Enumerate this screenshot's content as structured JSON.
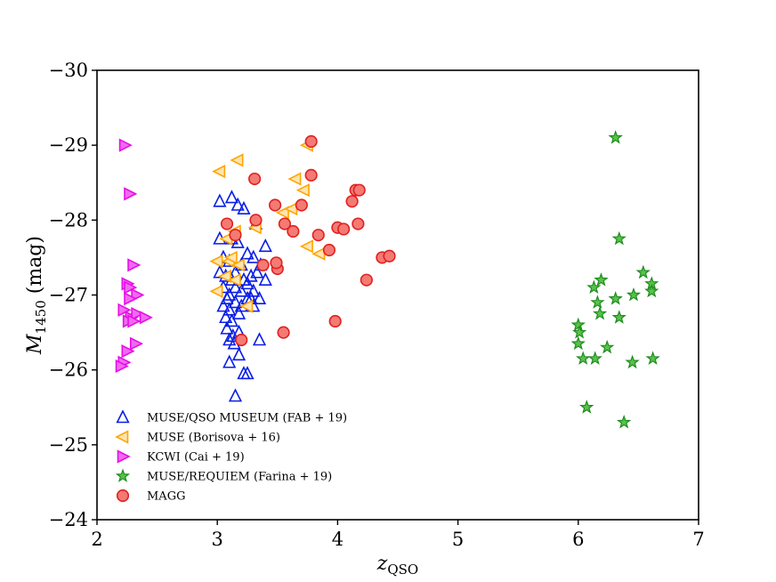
{
  "chart_data": {
    "type": "scatter",
    "title": "",
    "xlabel": "z_QSO",
    "ylabel": "M_1450 (mag)",
    "xlim": [
      2,
      7
    ],
    "ylim": [
      -24,
      -30
    ],
    "grid": false,
    "legend_position": "lower-left",
    "x_ticks": [
      2,
      3,
      4,
      5,
      6,
      7
    ],
    "x_tick_labels": [
      "2",
      "3",
      "4",
      "5",
      "6",
      "7"
    ],
    "y_ticks": [
      -30,
      -29,
      -28,
      -27,
      -26,
      -25,
      -24
    ],
    "y_tick_labels": [
      "−30",
      "−29",
      "−28",
      "−27",
      "−26",
      "−25",
      "−24"
    ],
    "series": [
      {
        "name": "MUSE/QSO MUSEUM (FAB + 19)",
        "marker": "triangle-up",
        "edge": "#0a1ee6",
        "face": "none",
        "points": [
          [
            3.02,
            -27.75
          ],
          [
            3.12,
            -27.75
          ],
          [
            3.17,
            -27.7
          ],
          [
            3.22,
            -28.15
          ],
          [
            3.32,
            -27.95
          ],
          [
            3.4,
            -27.65
          ],
          [
            3.05,
            -27.5
          ],
          [
            3.1,
            -27.45
          ],
          [
            3.2,
            -27.4
          ],
          [
            3.25,
            -27.55
          ],
          [
            3.3,
            -27.5
          ],
          [
            3.36,
            -27.4
          ],
          [
            3.02,
            -27.3
          ],
          [
            3.07,
            -27.25
          ],
          [
            3.12,
            -27.2
          ],
          [
            3.15,
            -27.3
          ],
          [
            3.22,
            -27.2
          ],
          [
            3.28,
            -27.25
          ],
          [
            3.33,
            -27.3
          ],
          [
            3.4,
            -27.2
          ],
          [
            3.05,
            -27.1
          ],
          [
            3.1,
            -27.0
          ],
          [
            3.15,
            -27.1
          ],
          [
            3.2,
            -27.05
          ],
          [
            3.25,
            -27.15
          ],
          [
            3.3,
            -27.05
          ],
          [
            3.35,
            -26.95
          ],
          [
            3.05,
            -26.85
          ],
          [
            3.1,
            -26.8
          ],
          [
            3.15,
            -26.9
          ],
          [
            3.2,
            -26.85
          ],
          [
            3.25,
            -26.95
          ],
          [
            3.3,
            -26.85
          ],
          [
            3.07,
            -26.7
          ],
          [
            3.12,
            -26.65
          ],
          [
            3.18,
            -26.75
          ],
          [
            3.08,
            -26.55
          ],
          [
            3.13,
            -26.45
          ],
          [
            3.18,
            -26.5
          ],
          [
            3.1,
            -26.4
          ],
          [
            3.14,
            -26.35
          ],
          [
            3.18,
            -26.2
          ],
          [
            3.35,
            -26.4
          ],
          [
            3.1,
            -26.1
          ],
          [
            3.22,
            -25.95
          ],
          [
            3.25,
            -25.95
          ],
          [
            3.15,
            -25.65
          ],
          [
            3.02,
            -28.25
          ],
          [
            3.12,
            -28.3
          ],
          [
            3.17,
            -28.2
          ],
          [
            3.08,
            -26.95
          ],
          [
            3.28,
            -26.95
          ]
        ]
      },
      {
        "name": "MUSE (Borisova + 16)",
        "marker": "triangle-left",
        "edge": "#ffa500",
        "face": "#ffe4b0",
        "points": [
          [
            3.02,
            -28.65
          ],
          [
            3.17,
            -28.8
          ],
          [
            3.75,
            -29.0
          ],
          [
            3.65,
            -28.55
          ],
          [
            3.72,
            -28.4
          ],
          [
            3.55,
            -28.1
          ],
          [
            3.62,
            -28.15
          ],
          [
            3.15,
            -27.85
          ],
          [
            3.32,
            -27.9
          ],
          [
            3.08,
            -27.75
          ],
          [
            3.75,
            -27.65
          ],
          [
            3.85,
            -27.55
          ],
          [
            3.0,
            -27.45
          ],
          [
            3.1,
            -27.45
          ],
          [
            3.18,
            -27.4
          ],
          [
            3.07,
            -27.25
          ],
          [
            3.15,
            -27.2
          ],
          [
            3.0,
            -27.05
          ],
          [
            3.25,
            -26.85
          ],
          [
            3.12,
            -27.5
          ]
        ]
      },
      {
        "name": "KCWI (Cai + 19)",
        "marker": "triangle-right",
        "edge": "#e60ee6",
        "face": "#f06af0",
        "points": [
          [
            2.23,
            -29.0
          ],
          [
            2.27,
            -28.35
          ],
          [
            2.3,
            -27.4
          ],
          [
            2.25,
            -27.15
          ],
          [
            2.27,
            -27.1
          ],
          [
            2.33,
            -27.0
          ],
          [
            2.27,
            -26.95
          ],
          [
            2.22,
            -26.8
          ],
          [
            2.28,
            -26.7
          ],
          [
            2.33,
            -26.75
          ],
          [
            2.4,
            -26.7
          ],
          [
            2.26,
            -26.65
          ],
          [
            2.3,
            -26.65
          ],
          [
            2.32,
            -26.35
          ],
          [
            2.25,
            -26.25
          ],
          [
            2.22,
            -26.1
          ],
          [
            2.2,
            -26.05
          ]
        ]
      },
      {
        "name": "MUSE/REQUIEM (Farina + 19)",
        "marker": "star",
        "edge": "#1e8c1e",
        "face": "#58c24a",
        "points": [
          [
            6.31,
            -29.1
          ],
          [
            6.34,
            -27.75
          ],
          [
            6.54,
            -27.3
          ],
          [
            6.19,
            -27.2
          ],
          [
            6.13,
            -27.1
          ],
          [
            6.61,
            -27.15
          ],
          [
            6.61,
            -27.05
          ],
          [
            6.46,
            -27.0
          ],
          [
            6.31,
            -26.95
          ],
          [
            6.16,
            -26.9
          ],
          [
            6.18,
            -26.75
          ],
          [
            6.34,
            -26.7
          ],
          [
            6.0,
            -26.6
          ],
          [
            6.01,
            -26.5
          ],
          [
            6.0,
            -26.35
          ],
          [
            6.24,
            -26.3
          ],
          [
            6.04,
            -26.15
          ],
          [
            6.14,
            -26.15
          ],
          [
            6.62,
            -26.15
          ],
          [
            6.45,
            -26.1
          ],
          [
            6.07,
            -25.5
          ],
          [
            6.38,
            -25.3
          ]
        ]
      },
      {
        "name": "MAGG",
        "marker": "circle",
        "edge": "#e02020",
        "face": "#f47a74",
        "points": [
          [
            3.78,
            -29.05
          ],
          [
            3.78,
            -28.6
          ],
          [
            3.31,
            -28.55
          ],
          [
            4.15,
            -28.4
          ],
          [
            4.18,
            -28.4
          ],
          [
            3.48,
            -28.2
          ],
          [
            3.7,
            -28.2
          ],
          [
            4.12,
            -28.25
          ],
          [
            3.32,
            -28.0
          ],
          [
            3.56,
            -27.95
          ],
          [
            3.08,
            -27.95
          ],
          [
            4.0,
            -27.9
          ],
          [
            4.05,
            -27.88
          ],
          [
            4.17,
            -27.95
          ],
          [
            3.63,
            -27.85
          ],
          [
            3.84,
            -27.8
          ],
          [
            3.15,
            -27.8
          ],
          [
            3.93,
            -27.6
          ],
          [
            4.37,
            -27.5
          ],
          [
            4.43,
            -27.52
          ],
          [
            3.38,
            -27.4
          ],
          [
            3.5,
            -27.35
          ],
          [
            3.49,
            -27.43
          ],
          [
            4.24,
            -27.2
          ],
          [
            3.98,
            -26.65
          ],
          [
            3.55,
            -26.5
          ],
          [
            3.2,
            -26.4
          ]
        ]
      }
    ]
  }
}
